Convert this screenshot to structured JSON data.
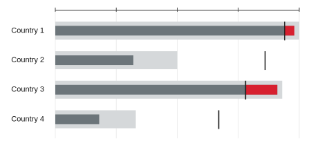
{
  "chart_data": {
    "type": "bullet",
    "categories": [
      "Country 1",
      "Country 2",
      "Country 3",
      "Country 4"
    ],
    "ranges": [
      100,
      50,
      93,
      33
    ],
    "values": [
      98,
      32,
      91,
      18
    ],
    "targets": [
      94,
      86,
      78,
      67
    ],
    "xlim": [
      0,
      100
    ],
    "xticks": [
      0,
      25,
      50,
      75,
      100
    ],
    "grid": true,
    "range_color": "#d5d8da",
    "value_color": "#6c757a",
    "over_color": "#d7202f",
    "target_color": "#222222"
  }
}
